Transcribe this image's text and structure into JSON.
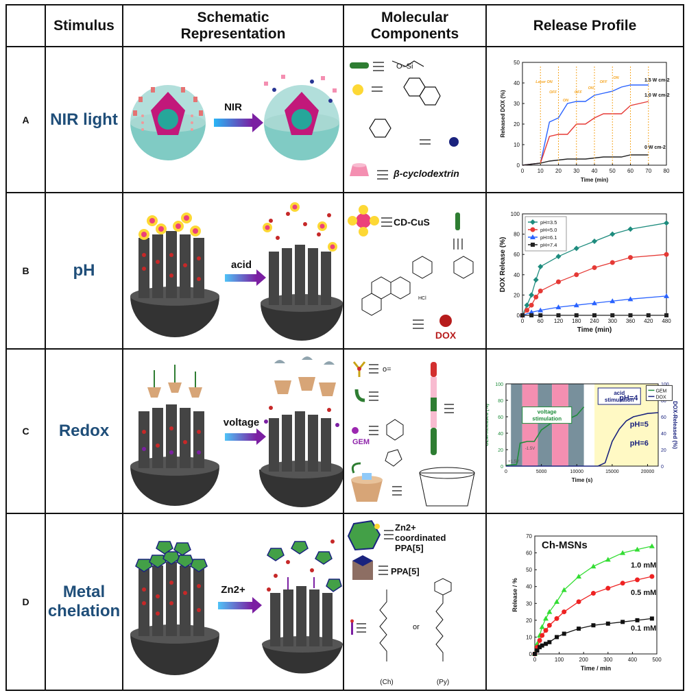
{
  "header": {
    "stimulus": "Stimulus",
    "schematic_l1": "Schematic",
    "schematic_l2": "Representation",
    "molecular_l1": "Molecular",
    "molecular_l2": "Components",
    "release": "Release Profile"
  },
  "rows": [
    {
      "letter": "A",
      "stimulus": "NIR light",
      "arrow_label": "NIR"
    },
    {
      "letter": "B",
      "stimulus": "pH",
      "arrow_label": "acid"
    },
    {
      "letter": "C",
      "stimulus": "Redox",
      "arrow_label": "voltage"
    },
    {
      "letter": "D",
      "stimulus_l1": "Metal",
      "stimulus_l2": "chelation",
      "arrow_label": "Zn2+"
    }
  ],
  "molecular": {
    "a_cd": "β-cyclodextrin",
    "b_cdcus": "CD-CuS",
    "b_dox": "DOX",
    "b_hcl": "HCl",
    "c_gem": "GEM",
    "d_zn_l1": "Zn2+",
    "d_zn_l2": "coordinated",
    "d_zn_l3": "PPA[5]",
    "d_ppa": "PPA[5]",
    "d_or": "or",
    "d_ch": "(Ch)",
    "d_py": "(Py)"
  },
  "chart_data": [
    {
      "type": "line",
      "ylabel": "Released DOX (%)",
      "xlabel": "Time (min)",
      "xlim": [
        0,
        80
      ],
      "ylim": [
        0,
        50
      ],
      "xticks": [
        0,
        10,
        20,
        30,
        40,
        50,
        60,
        70,
        80
      ],
      "yticks": [
        0,
        10,
        20,
        30,
        40,
        50
      ],
      "annotations": [
        "Laser ON",
        "OFF",
        "ON",
        "OFF",
        "ON",
        "OFF",
        "ON"
      ],
      "series": [
        {
          "name": "1.5 W cm-2",
          "color": "#2962ff",
          "x": [
            0,
            10,
            15,
            20,
            25,
            30,
            35,
            40,
            45,
            50,
            55,
            60,
            65,
            70
          ],
          "y": [
            0,
            1,
            21,
            23,
            30,
            31,
            31,
            34,
            35,
            36,
            38,
            39,
            39,
            39
          ]
        },
        {
          "name": "1.0 W cm-2",
          "color": "#e53935",
          "x": [
            0,
            10,
            15,
            20,
            25,
            30,
            35,
            40,
            45,
            50,
            55,
            60,
            65,
            70
          ],
          "y": [
            0,
            1,
            14,
            15,
            15,
            20,
            20,
            23,
            25,
            25,
            25,
            29,
            30,
            31
          ]
        },
        {
          "name": "0 W cm-2",
          "color": "#222222",
          "x": [
            0,
            10,
            15,
            25,
            35,
            45,
            55,
            60,
            70
          ],
          "y": [
            0,
            1,
            2,
            3,
            3,
            4,
            4,
            5,
            5
          ]
        }
      ]
    },
    {
      "type": "line",
      "ylabel": "DOX Release (%)",
      "xlabel": "Time (min)",
      "xlim": [
        0,
        480
      ],
      "ylim": [
        0,
        100
      ],
      "xticks": [
        0,
        60,
        120,
        180,
        240,
        300,
        360,
        420,
        480
      ],
      "yticks": [
        0,
        20,
        40,
        60,
        80,
        100
      ],
      "legend": "top-left",
      "series": [
        {
          "name": "pH=3.5",
          "color": "#1e8c7e",
          "marker": "diamond",
          "x": [
            0,
            15,
            30,
            45,
            60,
            120,
            180,
            240,
            300,
            360,
            480
          ],
          "y": [
            0,
            10,
            20,
            35,
            48,
            58,
            66,
            73,
            80,
            85,
            91
          ]
        },
        {
          "name": "pH=5.0",
          "color": "#e53935",
          "marker": "circle",
          "x": [
            0,
            15,
            30,
            45,
            60,
            120,
            180,
            240,
            300,
            360,
            480
          ],
          "y": [
            0,
            5,
            10,
            18,
            24,
            33,
            40,
            47,
            52,
            57,
            60
          ]
        },
        {
          "name": "pH=6.1",
          "color": "#2962ff",
          "marker": "triangle",
          "x": [
            0,
            30,
            60,
            120,
            180,
            240,
            300,
            360,
            480
          ],
          "y": [
            0,
            3,
            5,
            8,
            10,
            12,
            14,
            16,
            19
          ]
        },
        {
          "name": "pH=7.4",
          "color": "#222222",
          "marker": "square",
          "x": [
            0,
            30,
            60,
            120,
            180,
            240,
            300,
            360,
            420,
            480
          ],
          "y": [
            0,
            0,
            0,
            0,
            0,
            0,
            0,
            0,
            0,
            0
          ]
        }
      ]
    },
    {
      "type": "line",
      "ylabel": "GEM-Released (%)",
      "y2label": "DOX-Released (%)",
      "xlabel": "Time (s)",
      "xlim": [
        0,
        21500
      ],
      "ylim": [
        0,
        100
      ],
      "y2lim": [
        0,
        100
      ],
      "xticks": [
        0,
        5000,
        10000,
        15000,
        20000
      ],
      "yticks": [
        0,
        20,
        40,
        60,
        80,
        100
      ],
      "annotations": [
        "voltage stimulation",
        "acid stimulation",
        "+1.5V",
        "-1.5V",
        "pH=4",
        "pH=5",
        "pH=6"
      ],
      "legend": "top-right",
      "series": [
        {
          "name": "GEM",
          "color": "#1e8c3a",
          "x": [
            0,
            1500,
            2000,
            3000,
            4000,
            5000,
            6000,
            7000,
            8000,
            9000,
            10000,
            11000
          ],
          "y": [
            1,
            2,
            28,
            30,
            30,
            44,
            50,
            57,
            58,
            58,
            62,
            72
          ]
        },
        {
          "name": "DOX",
          "color": "#1a237e",
          "x": [
            0,
            11000,
            13000,
            14000,
            15000,
            16000,
            17000,
            18000,
            19000,
            20000,
            21500
          ],
          "y": [
            0,
            0,
            0,
            4,
            30,
            45,
            55,
            60,
            62,
            64,
            65
          ]
        }
      ]
    },
    {
      "type": "line",
      "title": "Ch-MSNs",
      "ylabel": "Release / %",
      "xlabel": "Time / min",
      "xlim": [
        0,
        500
      ],
      "ylim": [
        0,
        70
      ],
      "xticks": [
        0,
        100,
        200,
        300,
        400,
        500
      ],
      "yticks": [
        0,
        10,
        20,
        30,
        40,
        50,
        60,
        70
      ],
      "series": [
        {
          "name": "1.0 mM",
          "color": "#33dd33",
          "marker": "triangle",
          "x": [
            0,
            10,
            20,
            30,
            45,
            60,
            90,
            120,
            180,
            240,
            300,
            360,
            420,
            480
          ],
          "y": [
            0,
            6,
            11,
            16,
            21,
            25,
            31,
            38,
            46,
            52,
            56,
            60,
            62,
            64
          ]
        },
        {
          "name": "0.5 mM",
          "color": "#ee2222",
          "marker": "circle",
          "x": [
            0,
            10,
            20,
            30,
            45,
            60,
            90,
            120,
            180,
            240,
            300,
            360,
            420,
            480
          ],
          "y": [
            0,
            4,
            8,
            11,
            14,
            17,
            21,
            25,
            31,
            36,
            39,
            42,
            44,
            46
          ]
        },
        {
          "name": "0.1 mM",
          "color": "#111111",
          "marker": "square",
          "x": [
            0,
            10,
            20,
            30,
            45,
            60,
            90,
            120,
            180,
            240,
            300,
            360,
            420,
            480
          ],
          "y": [
            0,
            2,
            4,
            5,
            6,
            7,
            10,
            12,
            15,
            17,
            18,
            19,
            20,
            21
          ]
        }
      ]
    }
  ]
}
